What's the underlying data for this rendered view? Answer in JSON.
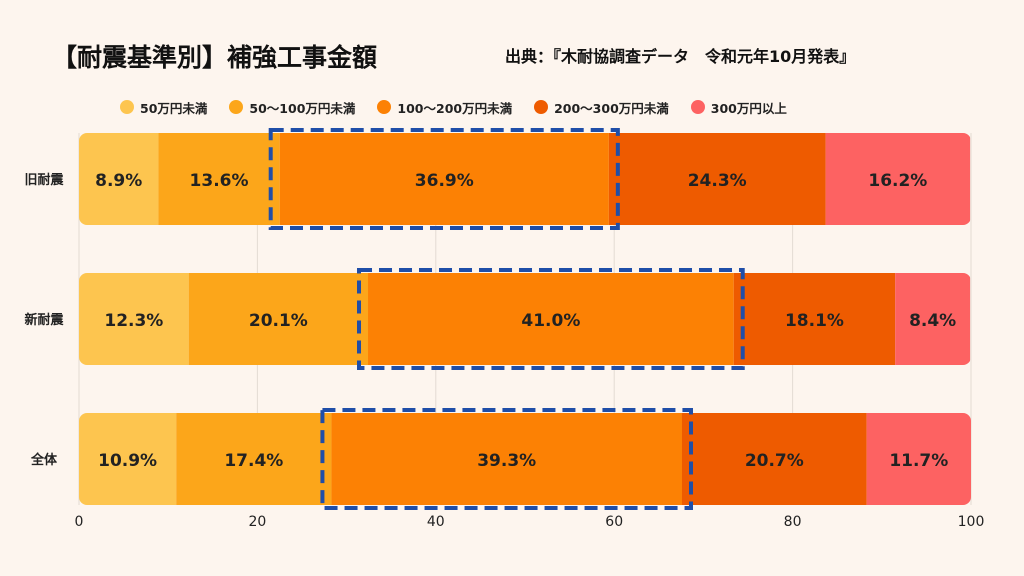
{
  "title": "【耐震基準別】補強工事金額",
  "source": "出典：『木耐協調査データ　令和元年10月発表』",
  "chart_data": {
    "type": "bar",
    "orientation": "horizontal",
    "stacked": true,
    "percent_stacked": true,
    "categories": [
      "旧耐震",
      "新耐震",
      "全体"
    ],
    "series": [
      {
        "name": "50万円未満",
        "color": "#fdc54f",
        "values": [
          8.9,
          12.3,
          10.9
        ]
      },
      {
        "name": "50〜100万円未満",
        "color": "#fca61a",
        "values": [
          13.6,
          20.1,
          17.4
        ]
      },
      {
        "name": "100〜200万円未満",
        "color": "#fc8104",
        "values": [
          36.9,
          41.0,
          39.3
        ]
      },
      {
        "name": "200〜300万円未満",
        "color": "#ee5b00",
        "values": [
          24.3,
          18.1,
          20.7
        ]
      },
      {
        "name": "300万円以上",
        "color": "#fd6262",
        "values": [
          16.2,
          8.4,
          11.7
        ]
      }
    ],
    "data_labels": [
      [
        "8.9%",
        "13.6%",
        "36.9%",
        "24.3%",
        "16.2%"
      ],
      [
        "12.3%",
        "20.1%",
        "41.0%",
        "18.1%",
        "8.4%"
      ],
      [
        "10.9%",
        "17.4%",
        "39.3%",
        "20.7%",
        "11.7%"
      ]
    ],
    "xlim": [
      0,
      100
    ],
    "x_ticks": [
      "0",
      "20",
      "40",
      "60",
      "80",
      "100"
    ],
    "grid": true,
    "legend_position": "top",
    "highlight": {
      "series": "100〜200万円未満",
      "style": "dashed box",
      "color": "#1f4ea8"
    }
  }
}
